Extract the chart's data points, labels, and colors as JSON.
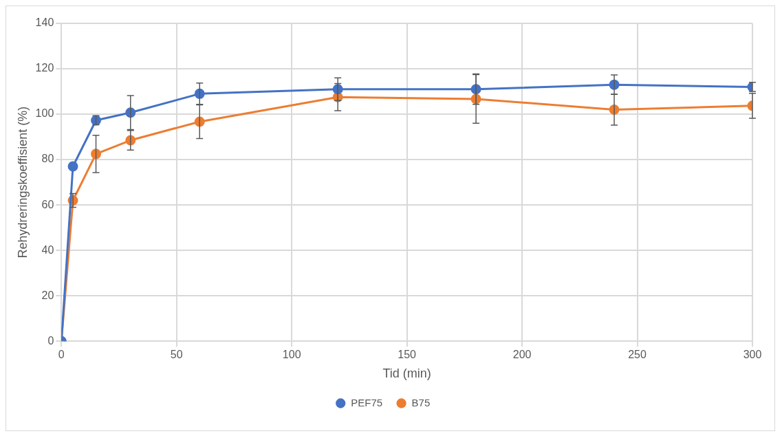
{
  "chart_data": {
    "type": "line",
    "xlabel": "Tid (min)",
    "ylabel": "Rehydreringskoeffisient (%)",
    "x": [
      0,
      5,
      15,
      30,
      60,
      120,
      180,
      240,
      300
    ],
    "series": [
      {
        "name": "PEF75",
        "color": "#4472c4",
        "values": [
          0,
          77,
          97.3,
          100.7,
          109,
          111,
          111,
          113,
          112
        ],
        "errors": [
          null,
          null,
          2,
          7.5,
          4.7,
          5,
          6.7,
          4.3,
          2
        ]
      },
      {
        "name": "B75",
        "color": "#ed7d31",
        "values": [
          0,
          62,
          82.5,
          88.5,
          96.7,
          107.5,
          106.7,
          102,
          103.7
        ],
        "errors": [
          null,
          3,
          8.2,
          4.3,
          7.4,
          6,
          10.7,
          6.8,
          5.5
        ]
      }
    ],
    "xlim": [
      0,
      300
    ],
    "xticks": [
      0,
      50,
      100,
      150,
      200,
      250,
      300
    ],
    "ylim": [
      0,
      140
    ],
    "yticks": [
      0,
      20,
      40,
      60,
      80,
      100,
      120,
      140
    ],
    "grid": true,
    "legend": "bottom",
    "marker": "circle",
    "line_style": "solid"
  }
}
